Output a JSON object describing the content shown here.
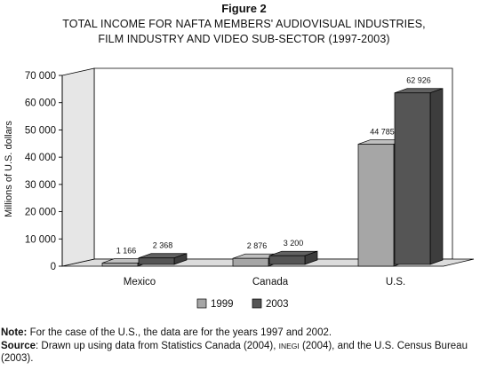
{
  "figure_label": "Figure 2",
  "title_line1": "TOTAL INCOME FOR NAFTA MEMBERS' AUDIOVISUAL INDUSTRIES,",
  "title_line2": "FILM INDUSTRY AND VIDEO SUB-SECTOR (1997-2003)",
  "notes": {
    "note_label": "Note:",
    "note_text": " For the case of the U.S., the data are for the years 1997 and 2002.",
    "source_label": "Source",
    "source_text_a": ": Drawn up using data from Statistics Canada (2004), ",
    "source_inegi": "INEGI",
    "source_text_b": " (2004), and the U.S. Census Bureau (2003)."
  },
  "colors": {
    "series_1999": "#a6a6a6",
    "series_2003": "#555555"
  },
  "chart_data": {
    "type": "bar",
    "title": "TOTAL INCOME FOR NAFTA MEMBERS' AUDIOVISUAL INDUSTRIES, FILM INDUSTRY AND VIDEO SUB-SECTOR (1997-2003)",
    "ylabel": "Millions of U.S. dollars",
    "xlabel": "",
    "ylim": [
      0,
      70000
    ],
    "yticks": [
      "0",
      "10 000",
      "20 000",
      "30 000",
      "40 000",
      "50 000",
      "60 000",
      "70 000"
    ],
    "categories": [
      "Mexico",
      "Canada",
      "U.S."
    ],
    "series": [
      {
        "name": "1999",
        "values": [
          1166,
          2876,
          44785
        ],
        "labels": [
          "1 166",
          "2 876",
          "44 785"
        ]
      },
      {
        "name": "2003",
        "values": [
          2368,
          3200,
          62926
        ],
        "labels": [
          "2 368",
          "3 200",
          "62 926"
        ]
      }
    ],
    "legend_position": "bottom",
    "grid": false,
    "style": "3d"
  }
}
